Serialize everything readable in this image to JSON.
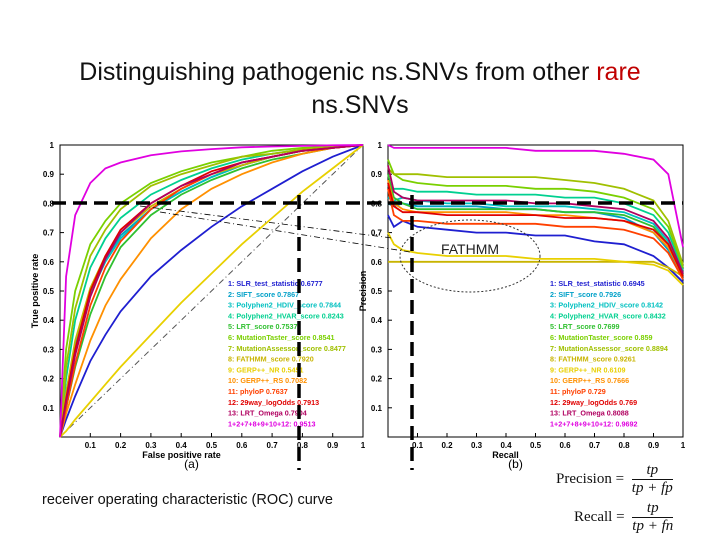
{
  "title": {
    "part1": "Distinguishing pathogenic ns.SNVs from other ",
    "highlight": "rare",
    "part2": "ns.SNVs"
  },
  "caption": "receiver operating characteristic (ROC) curve",
  "annotation": "FATHMM",
  "formulas": {
    "precision": {
      "label": "Precision =",
      "num": "tp",
      "den": "tp + fp"
    },
    "recall": {
      "label": "Recall =",
      "num": "tp",
      "den": "tp + fn"
    }
  },
  "chart_data": [
    {
      "type": "line",
      "panel_label": "(a)",
      "xlabel": "False positive rate",
      "ylabel": "True positive rate",
      "xlim": [
        0,
        1
      ],
      "ylim": [
        0,
        1
      ],
      "xticks": [
        "0.1",
        "0.2",
        "0.3",
        "0.4",
        "0.5",
        "0.6",
        "0.7",
        "0.8",
        "0.9",
        "1"
      ],
      "yticks": [
        "0.1",
        "0.2",
        "0.3",
        "0.4",
        "0.5",
        "0.6",
        "0.7",
        "0.8",
        "0.9",
        "1"
      ],
      "x": [
        0,
        0.02,
        0.05,
        0.1,
        0.15,
        0.2,
        0.3,
        0.4,
        0.5,
        0.6,
        0.7,
        0.8,
        0.9,
        1
      ],
      "series": [
        {
          "name": "1: SLR_test_statistic  0.6777",
          "color": "#1f1fd0",
          "values": [
            0,
            0.06,
            0.14,
            0.26,
            0.35,
            0.43,
            0.55,
            0.64,
            0.72,
            0.79,
            0.85,
            0.91,
            0.96,
            1
          ]
        },
        {
          "name": "2: SIFT_score 0.7867",
          "color": "#00a0c8",
          "values": [
            0,
            0.15,
            0.32,
            0.5,
            0.61,
            0.69,
            0.78,
            0.84,
            0.89,
            0.93,
            0.96,
            0.98,
            0.99,
            1
          ]
        },
        {
          "name": "3: Polyphen2_HDIV_score 0.7844",
          "color": "#00c0c0",
          "values": [
            0,
            0.14,
            0.3,
            0.49,
            0.6,
            0.68,
            0.78,
            0.84,
            0.89,
            0.93,
            0.96,
            0.98,
            0.99,
            1
          ]
        },
        {
          "name": "4: Polyphen2_HVAR_score 0.8243",
          "color": "#00d090",
          "values": [
            0,
            0.2,
            0.4,
            0.58,
            0.68,
            0.75,
            0.83,
            0.88,
            0.92,
            0.95,
            0.97,
            0.985,
            0.995,
            1
          ]
        },
        {
          "name": "5: LRT_score 0.7537",
          "color": "#30c030",
          "values": [
            0,
            0.1,
            0.24,
            0.42,
            0.55,
            0.65,
            0.76,
            0.83,
            0.88,
            0.92,
            0.95,
            0.97,
            0.99,
            1
          ]
        },
        {
          "name": "6: MutationTaster_score 0.8541",
          "color": "#7ad000",
          "values": [
            0,
            0.3,
            0.5,
            0.66,
            0.74,
            0.8,
            0.87,
            0.91,
            0.94,
            0.96,
            0.98,
            0.99,
            0.995,
            1
          ]
        },
        {
          "name": "7: MutationAssessor_score 0.8477",
          "color": "#a0c000",
          "values": [
            0,
            0.24,
            0.44,
            0.62,
            0.71,
            0.78,
            0.86,
            0.9,
            0.93,
            0.96,
            0.97,
            0.985,
            0.995,
            1
          ]
        },
        {
          "name": "8: FATHMM_score 0.7920",
          "color": "#c8b400",
          "values": [
            0,
            0.15,
            0.33,
            0.51,
            0.62,
            0.7,
            0.79,
            0.85,
            0.9,
            0.93,
            0.96,
            0.98,
            0.99,
            1
          ]
        },
        {
          "name": "9: GERP++_NR 0.5451",
          "color": "#e8d000",
          "values": [
            0,
            0.02,
            0.06,
            0.12,
            0.18,
            0.24,
            0.35,
            0.46,
            0.56,
            0.66,
            0.75,
            0.84,
            0.92,
            1
          ]
        },
        {
          "name": "10: GERP++_RS 0.7082",
          "color": "#ff9000",
          "values": [
            0,
            0.08,
            0.18,
            0.33,
            0.45,
            0.54,
            0.68,
            0.78,
            0.85,
            0.9,
            0.94,
            0.97,
            0.99,
            1
          ]
        },
        {
          "name": "11: phyloP 0.7637",
          "color": "#ff4000",
          "values": [
            0,
            0.1,
            0.25,
            0.45,
            0.58,
            0.67,
            0.78,
            0.85,
            0.9,
            0.94,
            0.96,
            0.98,
            0.99,
            1
          ]
        },
        {
          "name": "12: 29way_logOdds 0.7913",
          "color": "#e00000",
          "values": [
            0,
            0.13,
            0.3,
            0.5,
            0.62,
            0.71,
            0.8,
            0.86,
            0.91,
            0.94,
            0.96,
            0.98,
            0.99,
            1
          ]
        },
        {
          "name": "13: LRT_Omega 0.7904",
          "color": "#b00060",
          "values": [
            0,
            0.12,
            0.28,
            0.48,
            0.61,
            0.7,
            0.8,
            0.86,
            0.9,
            0.94,
            0.96,
            0.98,
            0.99,
            1
          ]
        },
        {
          "name": "1+2+7+8+9+10+12: 0.9513",
          "color": "#e000e0",
          "values": [
            0,
            0.55,
            0.76,
            0.87,
            0.92,
            0.94,
            0.965,
            0.978,
            0.986,
            0.992,
            0.995,
            0.997,
            0.999,
            1
          ]
        }
      ]
    },
    {
      "type": "line",
      "panel_label": "(b)",
      "xlabel": "Recall",
      "ylabel": "Precision",
      "xlim": [
        0,
        1
      ],
      "ylim": [
        0,
        1
      ],
      "xticks": [
        "0.1",
        "0.2",
        "0.3",
        "0.4",
        "0.5",
        "0.6",
        "0.7",
        "0.8",
        "0.9",
        "1"
      ],
      "yticks": [
        "0.1",
        "0.2",
        "0.3",
        "0.4",
        "0.5",
        "0.6",
        "0.7",
        "0.8",
        "0.9",
        "1"
      ],
      "x": [
        0,
        0.02,
        0.05,
        0.1,
        0.2,
        0.3,
        0.4,
        0.5,
        0.6,
        0.7,
        0.8,
        0.9,
        0.95,
        1
      ],
      "series": [
        {
          "name": "1: SLR_test_statistic  0.6945",
          "color": "#1f1fd0",
          "values": [
            0.76,
            0.72,
            0.74,
            0.72,
            0.71,
            0.7,
            0.7,
            0.69,
            0.69,
            0.67,
            0.66,
            0.62,
            0.58,
            0.53
          ]
        },
        {
          "name": "2: SIFT_score 0.7926",
          "color": "#00a0c8",
          "values": [
            0.8,
            0.79,
            0.8,
            0.79,
            0.79,
            0.79,
            0.78,
            0.78,
            0.77,
            0.77,
            0.75,
            0.7,
            0.64,
            0.55
          ]
        },
        {
          "name": "3: Polyphen2_HDIV_score 0.8142",
          "color": "#00c0c0",
          "values": [
            0.82,
            0.81,
            0.82,
            0.81,
            0.8,
            0.8,
            0.79,
            0.79,
            0.79,
            0.78,
            0.77,
            0.73,
            0.67,
            0.56
          ]
        },
        {
          "name": "4: Polyphen2_HVAR_score 0.8432",
          "color": "#00d090",
          "values": [
            0.86,
            0.85,
            0.85,
            0.84,
            0.84,
            0.83,
            0.83,
            0.83,
            0.82,
            0.82,
            0.8,
            0.76,
            0.7,
            0.57
          ]
        },
        {
          "name": "5: LRT_score 0.7699",
          "color": "#30c030",
          "values": [
            0.9,
            0.82,
            0.8,
            0.78,
            0.78,
            0.78,
            0.78,
            0.78,
            0.77,
            0.77,
            0.76,
            0.72,
            0.66,
            0.55
          ]
        },
        {
          "name": "6: MutationTaster_score 0.859",
          "color": "#7ad000",
          "values": [
            0.95,
            0.9,
            0.88,
            0.87,
            0.86,
            0.86,
            0.86,
            0.85,
            0.85,
            0.84,
            0.82,
            0.78,
            0.72,
            0.58
          ]
        },
        {
          "name": "7: MutationAssessor_score 0.8894",
          "color": "#a0c000",
          "values": [
            0.92,
            0.9,
            0.9,
            0.9,
            0.89,
            0.89,
            0.89,
            0.89,
            0.88,
            0.87,
            0.85,
            0.81,
            0.74,
            0.59
          ]
        },
        {
          "name": "8: FATHMM_score 0.9261",
          "color": "#c8b400",
          "values": [
            0.6,
            0.6,
            0.6,
            0.6,
            0.6,
            0.6,
            0.6,
            0.6,
            0.6,
            0.6,
            0.6,
            0.6,
            0.58,
            0.55
          ]
        },
        {
          "name": "9: GERP++_NR 0.6109",
          "color": "#e8d000",
          "values": [
            0.7,
            0.66,
            0.64,
            0.63,
            0.62,
            0.62,
            0.62,
            0.61,
            0.61,
            0.61,
            0.6,
            0.59,
            0.57,
            0.52
          ]
        },
        {
          "name": "10: GERP++_RS 0.7666",
          "color": "#ff9000",
          "values": [
            0.88,
            0.8,
            0.78,
            0.77,
            0.77,
            0.77,
            0.77,
            0.76,
            0.76,
            0.75,
            0.74,
            0.7,
            0.65,
            0.55
          ]
        },
        {
          "name": "11: phyloP 0.729",
          "color": "#ff4000",
          "values": [
            0.85,
            0.76,
            0.74,
            0.74,
            0.73,
            0.73,
            0.73,
            0.73,
            0.72,
            0.72,
            0.71,
            0.68,
            0.63,
            0.54
          ]
        },
        {
          "name": "12: 29way_logOdds 0.769",
          "color": "#e00000",
          "values": [
            0.87,
            0.79,
            0.77,
            0.77,
            0.76,
            0.76,
            0.76,
            0.76,
            0.75,
            0.75,
            0.74,
            0.71,
            0.66,
            0.55
          ]
        },
        {
          "name": "13: LRT_Omega 0.8088",
          "color": "#b00060",
          "values": [
            0.93,
            0.84,
            0.82,
            0.81,
            0.81,
            0.81,
            0.81,
            0.8,
            0.8,
            0.79,
            0.78,
            0.74,
            0.68,
            0.56
          ]
        },
        {
          "name": "1+2+7+8+9+10+12: 0.9692",
          "color": "#e000e0",
          "values": [
            1,
            0.99,
            0.99,
            0.99,
            0.99,
            0.99,
            0.99,
            0.98,
            0.98,
            0.98,
            0.97,
            0.95,
            0.9,
            0.65
          ]
        }
      ]
    }
  ]
}
